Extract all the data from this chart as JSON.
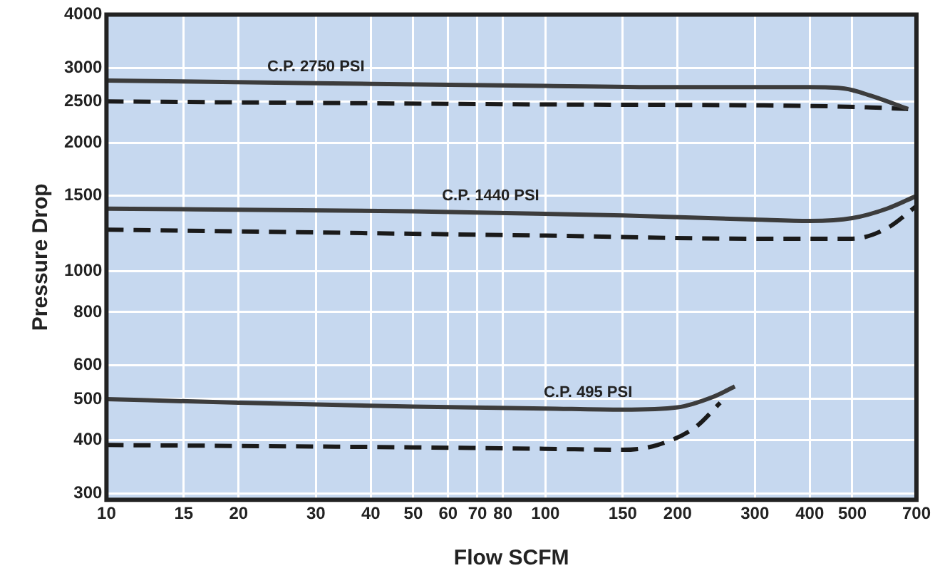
{
  "chart_data": {
    "type": "line",
    "xlabel": "Flow SCFM",
    "ylabel": "Pressure Drop",
    "log": "xy",
    "grid": true,
    "marker": "none",
    "xlim": [
      10,
      700
    ],
    "xticks": [
      10,
      15,
      20,
      30,
      40,
      50,
      60,
      70,
      80,
      100,
      150,
      200,
      300,
      400,
      500,
      700
    ],
    "ylim": [
      290,
      4000
    ],
    "yticks": [
      300,
      400,
      500,
      600,
      800,
      1000,
      1500,
      2000,
      2500,
      3000,
      4000
    ],
    "series": [
      {
        "color": "#3c3c3c",
        "line_style": "solid",
        "x": [
          10,
          30,
          100,
          200,
          400,
          480,
          550,
          670
        ],
        "values": [
          2800,
          2760,
          2720,
          2700,
          2700,
          2680,
          2580,
          2400
        ]
      },
      {
        "color": "#1a1a1a",
        "line_style": "dashed",
        "x": [
          10,
          100,
          400,
          550,
          670
        ],
        "values": [
          2500,
          2460,
          2440,
          2420,
          2400
        ]
      },
      {
        "color": "#3c3c3c",
        "line_style": "solid",
        "x": [
          10,
          50,
          150,
          300,
          400,
          500,
          600,
          700
        ],
        "values": [
          1400,
          1380,
          1350,
          1320,
          1310,
          1330,
          1400,
          1500
        ]
      },
      {
        "color": "#1a1a1a",
        "line_style": "dashed",
        "x": [
          10,
          100,
          300,
          500,
          600,
          700
        ],
        "values": [
          1250,
          1210,
          1190,
          1190,
          1260,
          1420
        ]
      },
      {
        "color": "#3c3c3c",
        "line_style": "solid",
        "x": [
          10,
          20,
          50,
          100,
          150,
          200,
          240,
          270
        ],
        "values": [
          500,
          490,
          480,
          475,
          472,
          478,
          505,
          535
        ]
      },
      {
        "color": "#1a1a1a",
        "line_style": "dashed",
        "x": [
          10,
          50,
          100,
          150,
          180,
          220,
          250
        ],
        "values": [
          390,
          385,
          382,
          380,
          390,
          430,
          490
        ]
      }
    ],
    "annotations": [
      {
        "text": "C.P. 2750 PSI",
        "x": 30,
        "y": 2760
      },
      {
        "text": "C.P. 1440 PSI",
        "x": 75,
        "y": 1370
      },
      {
        "text": "C.P. 495 PSI",
        "x": 125,
        "y": 474
      }
    ]
  }
}
